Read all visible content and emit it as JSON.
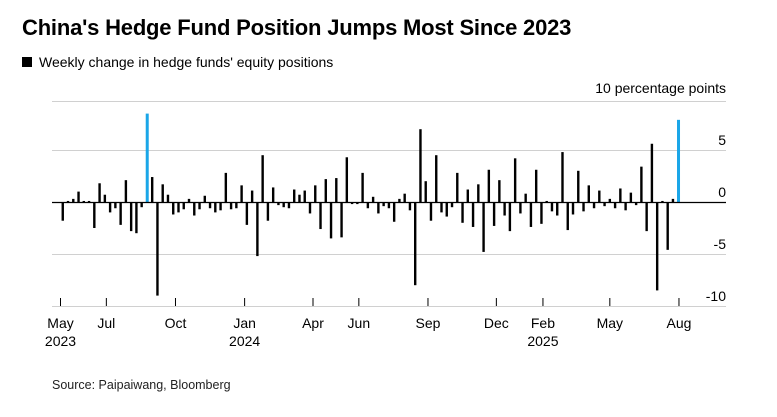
{
  "header": {
    "title": "China's Hedge Fund Position Jumps Most Since 2023",
    "legend_label": "Weekly change in hedge funds' equity positions"
  },
  "footer": {
    "source": "Source: Paipaiwang, Bloomberg"
  },
  "colors": {
    "bar": "#000000",
    "highlight": "#1aa6e8",
    "grid": "#d0d0d0"
  },
  "chart_data": {
    "type": "bar",
    "title": "China's Hedge Fund Position Jumps Most Since 2023",
    "subtitle": "Weekly change in hedge funds' equity positions",
    "ylabel": "10 percentage points",
    "ylim": [
      -11,
      10
    ],
    "yticks": [
      5,
      0,
      -5,
      -10
    ],
    "ytick_labels": [
      "5",
      "0",
      "-5",
      "-10"
    ],
    "grid": true,
    "x_date_range": [
      "2023-04-25",
      "2025-08-25"
    ],
    "xticks": [
      {
        "date": "2023-05-01",
        "label": "May",
        "year": "2023"
      },
      {
        "date": "2023-07-01",
        "label": "Jul",
        "year": ""
      },
      {
        "date": "2023-10-01",
        "label": "Oct",
        "year": ""
      },
      {
        "date": "2024-01-01",
        "label": "Jan",
        "year": "2024"
      },
      {
        "date": "2024-04-01",
        "label": "Apr",
        "year": ""
      },
      {
        "date": "2024-06-01",
        "label": "Jun",
        "year": ""
      },
      {
        "date": "2024-09-01",
        "label": "Sep",
        "year": ""
      },
      {
        "date": "2024-12-01",
        "label": "Dec",
        "year": ""
      },
      {
        "date": "2025-02-01",
        "label": "Feb",
        "year": "2025"
      },
      {
        "date": "2025-05-01",
        "label": "May",
        "year": ""
      },
      {
        "date": "2025-08-01",
        "label": "Aug",
        "year": ""
      }
    ],
    "series": [
      {
        "values": [
          {
            "date": "2023-05-04",
            "value": -1.8
          },
          {
            "date": "2023-05-11",
            "value": 0.1
          },
          {
            "date": "2023-05-18",
            "value": 0.3
          },
          {
            "date": "2023-05-25",
            "value": 1.0
          },
          {
            "date": "2023-06-01",
            "value": 0.1
          },
          {
            "date": "2023-06-08",
            "value": 0.1
          },
          {
            "date": "2023-06-15",
            "value": -2.5
          },
          {
            "date": "2023-06-22",
            "value": 1.8
          },
          {
            "date": "2023-06-29",
            "value": 0.7
          },
          {
            "date": "2023-07-06",
            "value": -1.0
          },
          {
            "date": "2023-07-13",
            "value": -0.6
          },
          {
            "date": "2023-07-20",
            "value": -2.2
          },
          {
            "date": "2023-07-27",
            "value": 2.1
          },
          {
            "date": "2023-08-03",
            "value": -2.8
          },
          {
            "date": "2023-08-10",
            "value": -3.0
          },
          {
            "date": "2023-08-17",
            "value": -0.5
          },
          {
            "date": "2023-08-24",
            "value": 8.5
          },
          {
            "date": "2023-08-31",
            "value": 2.4
          },
          {
            "date": "2023-09-07",
            "value": -9.0
          },
          {
            "date": "2023-09-14",
            "value": 1.7
          },
          {
            "date": "2023-09-21",
            "value": 0.7
          },
          {
            "date": "2023-09-28",
            "value": -1.2
          },
          {
            "date": "2023-10-05",
            "value": -1.0
          },
          {
            "date": "2023-10-12",
            "value": -0.7
          },
          {
            "date": "2023-10-19",
            "value": 0.3
          },
          {
            "date": "2023-10-26",
            "value": -1.3
          },
          {
            "date": "2023-11-02",
            "value": -0.7
          },
          {
            "date": "2023-11-09",
            "value": 0.6
          },
          {
            "date": "2023-11-16",
            "value": -0.6
          },
          {
            "date": "2023-11-23",
            "value": -1.0
          },
          {
            "date": "2023-11-30",
            "value": -0.8
          },
          {
            "date": "2023-12-07",
            "value": 2.8
          },
          {
            "date": "2023-12-14",
            "value": -0.7
          },
          {
            "date": "2023-12-21",
            "value": -0.6
          },
          {
            "date": "2023-12-28",
            "value": 1.6
          },
          {
            "date": "2024-01-04",
            "value": -2.2
          },
          {
            "date": "2024-01-11",
            "value": 1.1
          },
          {
            "date": "2024-01-18",
            "value": -5.2
          },
          {
            "date": "2024-01-25",
            "value": 4.5
          },
          {
            "date": "2024-02-01",
            "value": -1.8
          },
          {
            "date": "2024-02-08",
            "value": 1.4
          },
          {
            "date": "2024-02-15",
            "value": -0.3
          },
          {
            "date": "2024-02-22",
            "value": -0.5
          },
          {
            "date": "2024-02-29",
            "value": -0.6
          },
          {
            "date": "2024-03-07",
            "value": 1.2
          },
          {
            "date": "2024-03-14",
            "value": 0.7
          },
          {
            "date": "2024-03-21",
            "value": 1.1
          },
          {
            "date": "2024-03-28",
            "value": -1.1
          },
          {
            "date": "2024-04-04",
            "value": 1.6
          },
          {
            "date": "2024-04-11",
            "value": -2.6
          },
          {
            "date": "2024-04-18",
            "value": 2.2
          },
          {
            "date": "2024-04-25",
            "value": -3.5
          },
          {
            "date": "2024-05-02",
            "value": 2.3
          },
          {
            "date": "2024-05-09",
            "value": -3.4
          },
          {
            "date": "2024-05-16",
            "value": 4.3
          },
          {
            "date": "2024-05-23",
            "value": -0.2
          },
          {
            "date": "2024-05-30",
            "value": -0.2
          },
          {
            "date": "2024-06-06",
            "value": 2.8
          },
          {
            "date": "2024-06-13",
            "value": -0.6
          },
          {
            "date": "2024-06-20",
            "value": 0.5
          },
          {
            "date": "2024-06-27",
            "value": -1.1
          },
          {
            "date": "2024-07-04",
            "value": -0.4
          },
          {
            "date": "2024-07-11",
            "value": -0.6
          },
          {
            "date": "2024-07-18",
            "value": -1.9
          },
          {
            "date": "2024-07-25",
            "value": 0.3
          },
          {
            "date": "2024-08-01",
            "value": 0.8
          },
          {
            "date": "2024-08-08",
            "value": -0.8
          },
          {
            "date": "2024-08-15",
            "value": -8.0
          },
          {
            "date": "2024-08-22",
            "value": 7.0
          },
          {
            "date": "2024-08-29",
            "value": 2.0
          },
          {
            "date": "2024-09-05",
            "value": -1.8
          },
          {
            "date": "2024-09-12",
            "value": 4.5
          },
          {
            "date": "2024-09-19",
            "value": -1.0
          },
          {
            "date": "2024-09-26",
            "value": -1.4
          },
          {
            "date": "2024-10-03",
            "value": -0.5
          },
          {
            "date": "2024-10-10",
            "value": 2.8
          },
          {
            "date": "2024-10-17",
            "value": -2.0
          },
          {
            "date": "2024-10-24",
            "value": 1.2
          },
          {
            "date": "2024-10-31",
            "value": -2.4
          },
          {
            "date": "2024-11-07",
            "value": 1.7
          },
          {
            "date": "2024-11-14",
            "value": -4.8
          },
          {
            "date": "2024-11-21",
            "value": 3.1
          },
          {
            "date": "2024-11-28",
            "value": -2.3
          },
          {
            "date": "2024-12-05",
            "value": 2.1
          },
          {
            "date": "2024-12-12",
            "value": -1.3
          },
          {
            "date": "2024-12-19",
            "value": -2.8
          },
          {
            "date": "2024-12-26",
            "value": 4.2
          },
          {
            "date": "2025-01-02",
            "value": -1.1
          },
          {
            "date": "2025-01-09",
            "value": 0.8
          },
          {
            "date": "2025-01-16",
            "value": -2.4
          },
          {
            "date": "2025-01-23",
            "value": 3.1
          },
          {
            "date": "2025-01-30",
            "value": -2.1
          },
          {
            "date": "2025-02-06",
            "value": 0.1
          },
          {
            "date": "2025-02-13",
            "value": -0.9
          },
          {
            "date": "2025-02-20",
            "value": -1.3
          },
          {
            "date": "2025-02-27",
            "value": 4.8
          },
          {
            "date": "2025-03-06",
            "value": -2.7
          },
          {
            "date": "2025-03-13",
            "value": -1.2
          },
          {
            "date": "2025-03-20",
            "value": 3.0
          },
          {
            "date": "2025-03-27",
            "value": -0.9
          },
          {
            "date": "2025-04-03",
            "value": 1.6
          },
          {
            "date": "2025-04-10",
            "value": -0.6
          },
          {
            "date": "2025-04-17",
            "value": 1.1
          },
          {
            "date": "2025-04-24",
            "value": -0.4
          },
          {
            "date": "2025-05-01",
            "value": 0.3
          },
          {
            "date": "2025-05-08",
            "value": -0.6
          },
          {
            "date": "2025-05-15",
            "value": 1.3
          },
          {
            "date": "2025-05-22",
            "value": -0.8
          },
          {
            "date": "2025-05-29",
            "value": 0.9
          },
          {
            "date": "2025-06-05",
            "value": -0.3
          },
          {
            "date": "2025-06-12",
            "value": 3.4
          },
          {
            "date": "2025-06-19",
            "value": -2.8
          },
          {
            "date": "2025-06-26",
            "value": 5.6
          },
          {
            "date": "2025-07-03",
            "value": -8.5
          },
          {
            "date": "2025-07-10",
            "value": 0.1
          },
          {
            "date": "2025-07-17",
            "value": -4.6
          },
          {
            "date": "2025-07-24",
            "value": 0.3
          },
          {
            "date": "2025-07-31",
            "value": 7.9
          }
        ],
        "highlight_dates": [
          "2023-08-24",
          "2025-07-31"
        ]
      }
    ]
  }
}
